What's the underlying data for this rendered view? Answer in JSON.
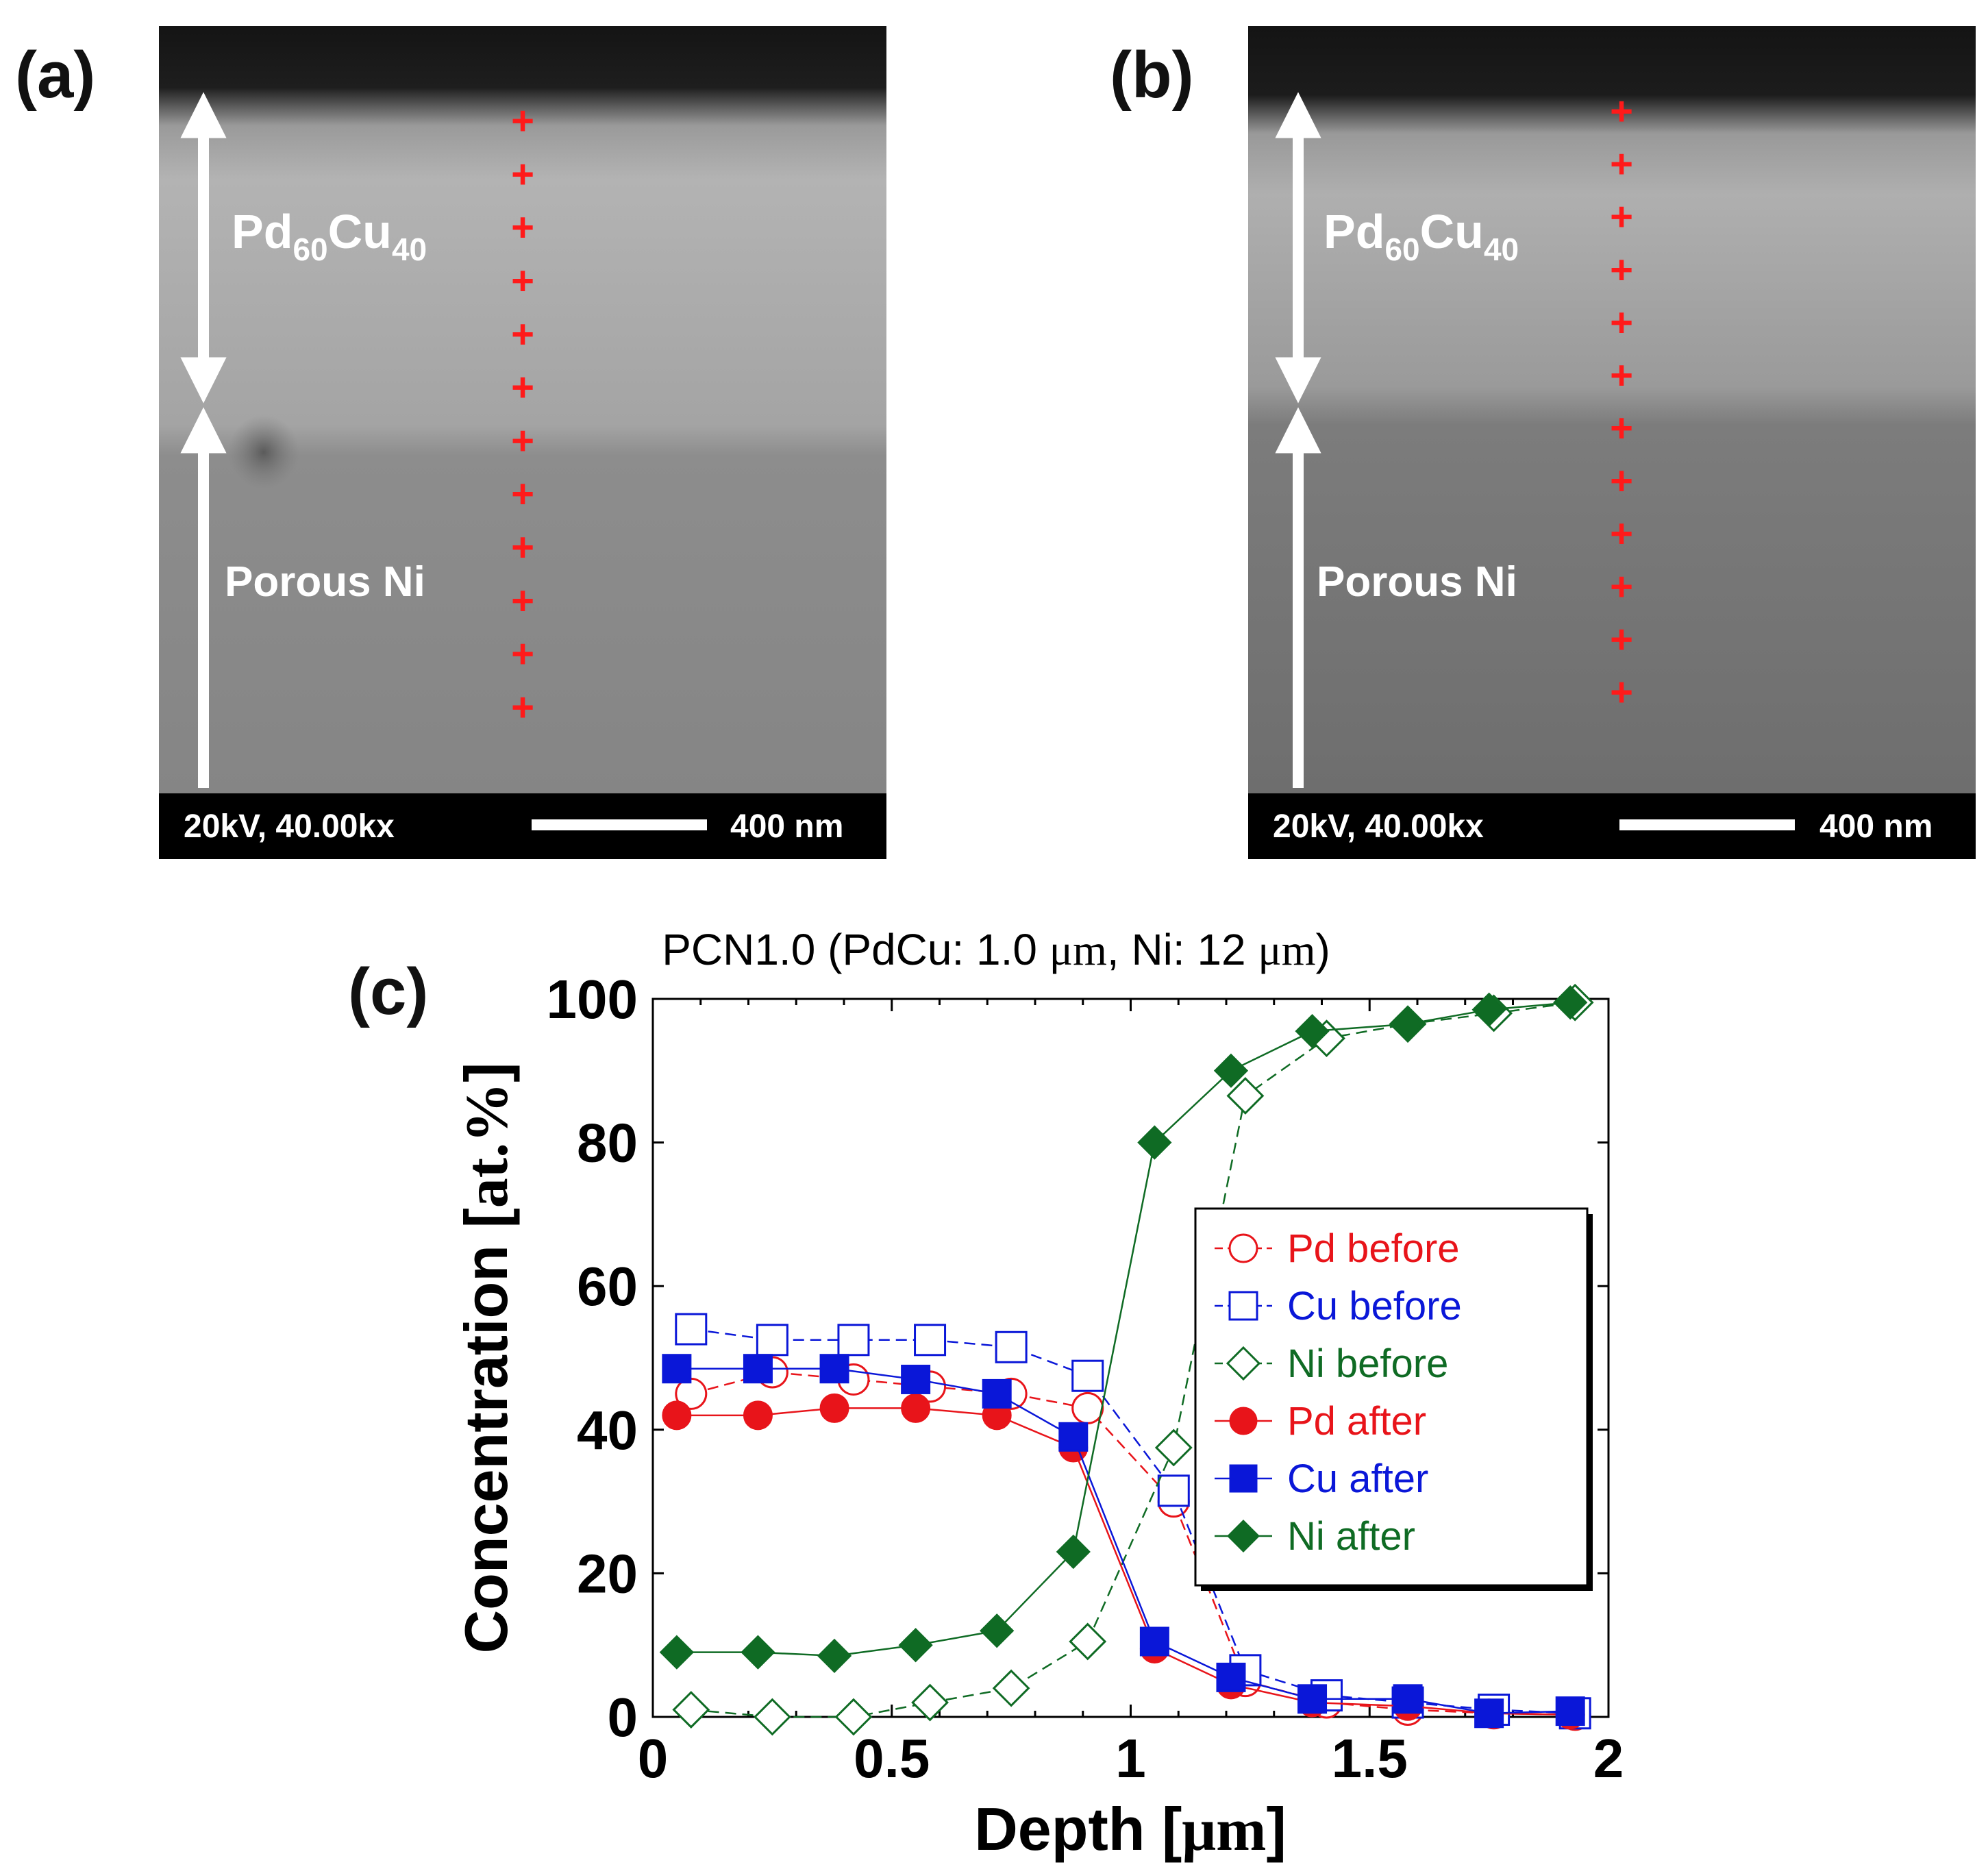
{
  "panels": {
    "a": {
      "label": "(a)",
      "layer_top": "Pd",
      "layer_top_sub1": "60",
      "layer_top_cu": "Cu",
      "layer_top_sub2": "40",
      "layer_bottom": "Porous Ni",
      "info": "20kV, 40.00kx",
      "scale_bar": "400 nm",
      "cross_count": 12
    },
    "b": {
      "label": "(b)",
      "layer_top": "Pd",
      "layer_top_sub1": "60",
      "layer_top_cu": "Cu",
      "layer_top_sub2": "40",
      "layer_bottom": "Porous Ni",
      "info": "20kV, 40.00kx",
      "scale_bar": "400 nm",
      "cross_count": 12
    },
    "c": {
      "label": "(c)"
    }
  },
  "colors": {
    "pd": "#e8141a",
    "cu": "#0a17d8",
    "ni": "#0f6b24",
    "cross": "#ff1a1a"
  },
  "chart_data": {
    "type": "line",
    "title_prefix": "PCN1.0 (PdCu: 1.0 ",
    "title_unit1": "μm",
    "title_mid": ", Ni: 12 ",
    "title_unit2": "μm",
    "title_suffix": ")",
    "xlabel_prefix": "Depth [",
    "xlabel_unit": "μm",
    "xlabel_suffix": "]",
    "ylabel_prefix": "Concentration [",
    "ylabel_unit": "at.%",
    "ylabel_suffix": "]",
    "xlim": [
      0,
      2
    ],
    "ylim": [
      0,
      100
    ],
    "xticks": [
      "0",
      "0.5",
      "1",
      "1.5",
      "2"
    ],
    "yticks": [
      "0",
      "20",
      "40",
      "60",
      "80",
      "100"
    ],
    "legend_position": "center-right",
    "series": [
      {
        "name": "Pd before",
        "color": "#e8141a",
        "marker": "circle",
        "filled": false,
        "dashed": true,
        "x": [
          0.08,
          0.25,
          0.42,
          0.58,
          0.75,
          0.91,
          1.09,
          1.24,
          1.41,
          1.58,
          1.76,
          1.93
        ],
        "y": [
          45,
          48,
          47,
          46,
          45,
          43,
          30,
          5,
          2,
          1,
          0.5,
          0.3
        ]
      },
      {
        "name": "Cu before",
        "color": "#0a17d8",
        "marker": "square",
        "filled": false,
        "dashed": true,
        "x": [
          0.08,
          0.25,
          0.42,
          0.58,
          0.75,
          0.91,
          1.09,
          1.24,
          1.41,
          1.58,
          1.76,
          1.93
        ],
        "y": [
          54,
          52.5,
          52.5,
          52.5,
          51.5,
          47.5,
          31.5,
          6.5,
          3,
          2,
          1,
          0.5
        ]
      },
      {
        "name": "Ni before",
        "color": "#0f6b24",
        "marker": "diamond",
        "filled": false,
        "dashed": true,
        "x": [
          0.08,
          0.25,
          0.42,
          0.58,
          0.75,
          0.91,
          1.09,
          1.24,
          1.41,
          1.58,
          1.76,
          1.93
        ],
        "y": [
          1,
          0,
          0,
          2,
          4,
          10.5,
          37.5,
          86.5,
          94.5,
          96.5,
          98,
          99.5
        ]
      },
      {
        "name": "Pd after",
        "color": "#e8141a",
        "marker": "circle",
        "filled": true,
        "dashed": false,
        "x": [
          0.05,
          0.22,
          0.38,
          0.55,
          0.72,
          0.88,
          1.05,
          1.21,
          1.38,
          1.58,
          1.75,
          1.92
        ],
        "y": [
          42,
          42,
          43,
          43,
          42,
          37.5,
          9.5,
          4.5,
          2,
          1.5,
          0.5,
          0.3
        ]
      },
      {
        "name": "Cu after",
        "color": "#0a17d8",
        "marker": "square",
        "filled": true,
        "dashed": false,
        "x": [
          0.05,
          0.22,
          0.38,
          0.55,
          0.72,
          0.88,
          1.05,
          1.21,
          1.38,
          1.58,
          1.75,
          1.92
        ],
        "y": [
          48.5,
          48.5,
          48.5,
          47,
          45,
          39,
          10.5,
          5.5,
          2.5,
          2.5,
          0.5,
          0.8
        ]
      },
      {
        "name": "Ni after",
        "color": "#0f6b24",
        "marker": "diamond",
        "filled": true,
        "dashed": false,
        "x": [
          0.05,
          0.22,
          0.38,
          0.55,
          0.72,
          0.88,
          1.05,
          1.21,
          1.38,
          1.58,
          1.75,
          1.92
        ],
        "y": [
          9,
          9,
          8.5,
          10,
          12,
          23,
          80,
          90,
          95.5,
          96.5,
          98.5,
          99.5
        ]
      }
    ]
  }
}
